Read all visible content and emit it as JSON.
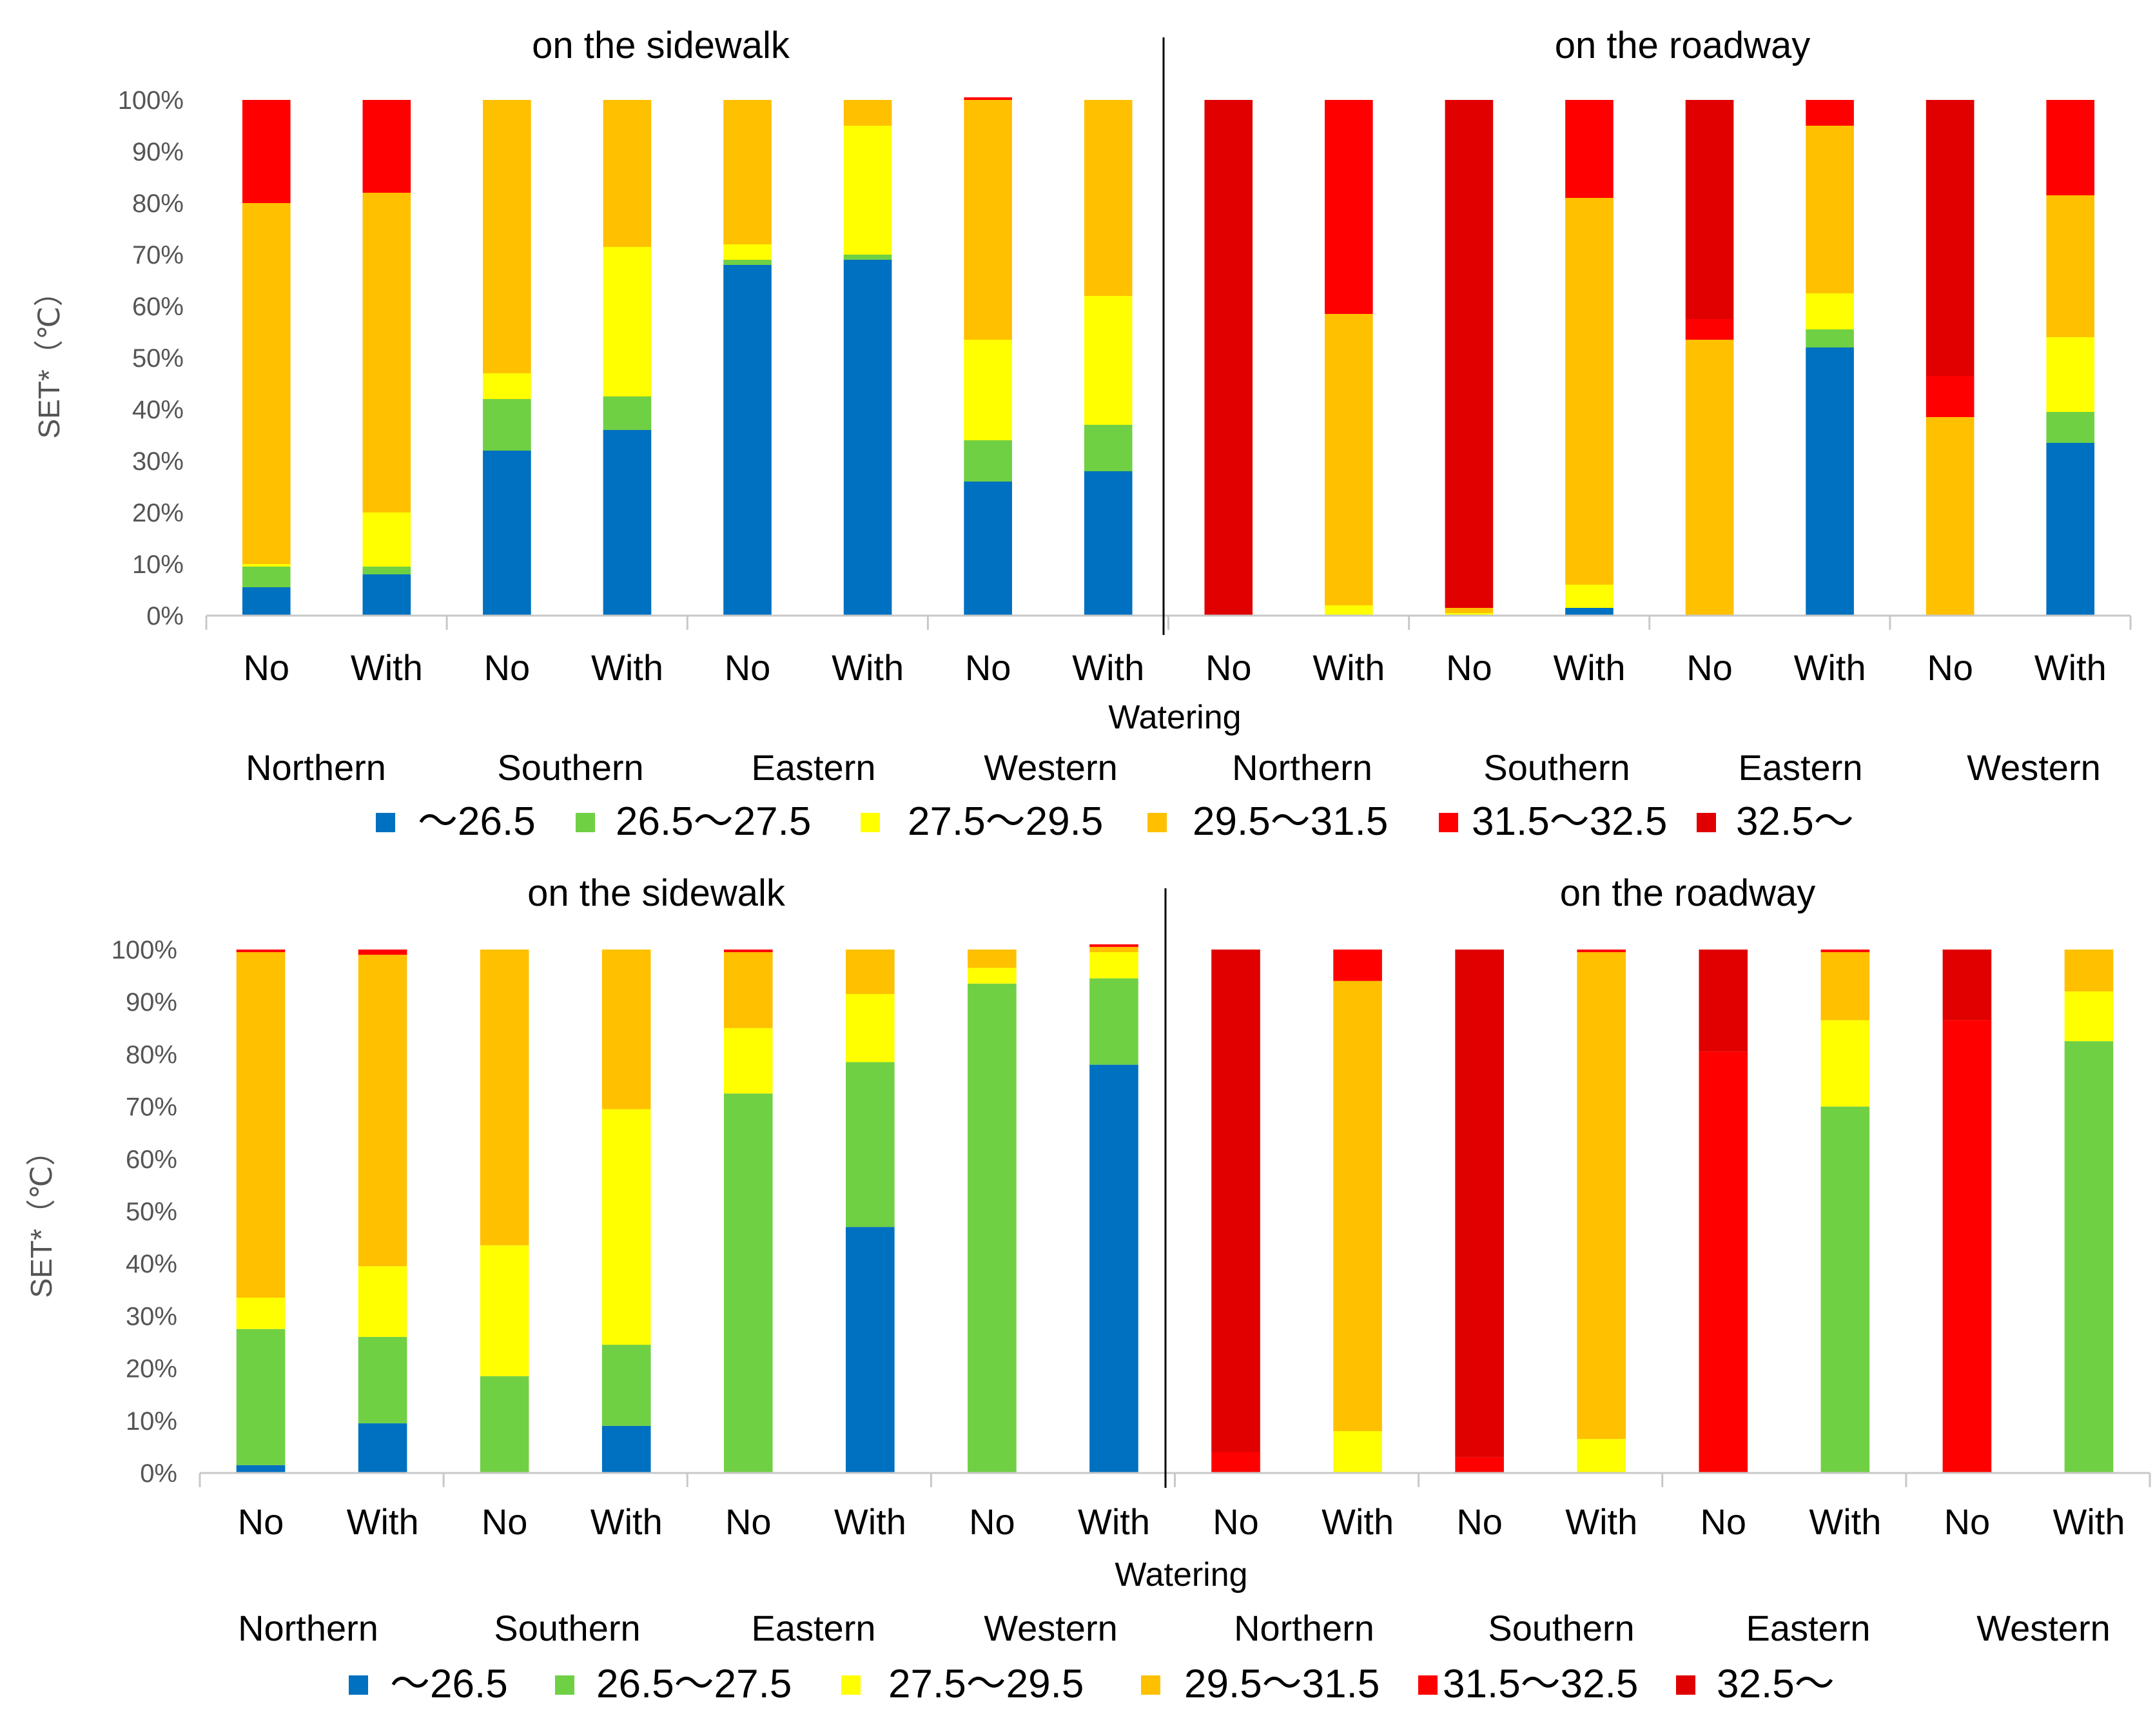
{
  "chart_data": [
    {
      "type": "bar",
      "stacked": true,
      "percent_stacked": true,
      "panel": "top",
      "region_titles": [
        "on the sidewalk",
        "on the roadway"
      ],
      "categories": [
        "No",
        "With",
        "No",
        "With",
        "No",
        "With",
        "No",
        "With",
        "No",
        "With",
        "No",
        "With",
        "No",
        "With",
        "No",
        "With"
      ],
      "groups": [
        "Northern",
        "Southern",
        "Eastern",
        "Western",
        "Northern",
        "Southern",
        "Eastern",
        "Western"
      ],
      "xlabel": "Watering",
      "ylabel": "SET*（℃）",
      "yticks": [
        "0%",
        "10%",
        "20%",
        "30%",
        "40%",
        "50%",
        "60%",
        "70%",
        "80%",
        "90%",
        "100%"
      ],
      "ylim": [
        0,
        100
      ],
      "series": [
        {
          "name": "～26.5",
          "color": "#0070C0",
          "values": [
            5.5,
            8,
            32,
            36,
            68,
            69,
            26,
            28,
            0,
            0,
            0,
            1.5,
            0,
            52,
            0,
            33.5
          ]
        },
        {
          "name": "26.5～27.5",
          "color": "#70D044",
          "values": [
            4,
            1.5,
            10,
            6.5,
            1,
            1,
            8,
            9,
            0,
            0,
            0,
            0,
            0,
            3.5,
            0,
            6
          ]
        },
        {
          "name": "27.5～29.5",
          "color": "#FFFF00",
          "values": [
            0.5,
            10.5,
            5,
            29,
            3,
            25,
            19.5,
            25,
            0,
            2,
            0.5,
            4.5,
            0,
            7,
            0,
            14.5
          ]
        },
        {
          "name": "29.5～31.5",
          "color": "#FFC000",
          "values": [
            70,
            62,
            53,
            28.5,
            28,
            5,
            46.5,
            38,
            0,
            56.5,
            1,
            75,
            53.5,
            32.5,
            38.5,
            27.5
          ]
        },
        {
          "name": "31.5～32.5",
          "color": "#FF0000",
          "values": [
            20,
            18,
            0,
            0,
            0,
            0,
            0.5,
            0,
            0,
            41.5,
            0,
            19,
            4,
            5,
            8,
            18.5
          ]
        },
        {
          "name": "32.5～",
          "color": "#E00000",
          "values": [
            0,
            0,
            0,
            0,
            0,
            0,
            0,
            0,
            100,
            0,
            98.5,
            0,
            42.5,
            0,
            53.5,
            0
          ]
        }
      ]
    },
    {
      "type": "bar",
      "stacked": true,
      "percent_stacked": true,
      "panel": "bottom",
      "region_titles": [
        "on the sidewalk",
        "on the roadway"
      ],
      "categories": [
        "No",
        "With",
        "No",
        "With",
        "No",
        "With",
        "No",
        "With",
        "No",
        "With",
        "No",
        "With",
        "No",
        "With",
        "No",
        "With"
      ],
      "groups": [
        "Northern",
        "Southern",
        "Eastern",
        "Western",
        "Northern",
        "Southern",
        "Eastern",
        "Western"
      ],
      "xlabel": "Watering",
      "ylabel": "SET*（℃）",
      "yticks": [
        "0%",
        "10%",
        "20%",
        "30%",
        "40%",
        "50%",
        "60%",
        "70%",
        "80%",
        "90%",
        "100%"
      ],
      "ylim": [
        0,
        100
      ],
      "series": [
        {
          "name": "～26.5",
          "color": "#0070C0",
          "values": [
            1.5,
            9.5,
            0,
            9,
            0,
            47,
            0,
            78,
            0,
            0,
            0,
            0,
            0,
            0,
            0,
            0
          ]
        },
        {
          "name": "26.5～27.5",
          "color": "#70D044",
          "values": [
            26,
            16.5,
            18.5,
            15.5,
            72.5,
            31.5,
            93.5,
            16.5,
            0,
            0,
            0,
            0,
            0,
            70,
            0,
            82.5
          ]
        },
        {
          "name": "27.5～29.5",
          "color": "#FFFF00",
          "values": [
            6,
            13.5,
            25,
            45,
            12.5,
            13,
            3,
            5,
            0,
            8,
            0,
            6.5,
            0,
            16.5,
            0,
            9.5
          ]
        },
        {
          "name": "29.5～31.5",
          "color": "#FFC000",
          "values": [
            66,
            59.5,
            56.5,
            30.5,
            14.5,
            8.5,
            3.5,
            1,
            0,
            86,
            0,
            93,
            0,
            13,
            0,
            8
          ]
        },
        {
          "name": "31.5～32.5",
          "color": "#FF0000",
          "values": [
            0.5,
            1,
            0,
            0,
            0.5,
            0,
            0,
            0.5,
            4,
            6,
            3,
            0.5,
            80.5,
            0.5,
            86.5,
            0
          ]
        },
        {
          "name": "32.5～",
          "color": "#E00000",
          "values": [
            0,
            0,
            0,
            0,
            0,
            0,
            0,
            0,
            96,
            0,
            97,
            0,
            19.5,
            0,
            13.5,
            0
          ]
        }
      ]
    }
  ]
}
